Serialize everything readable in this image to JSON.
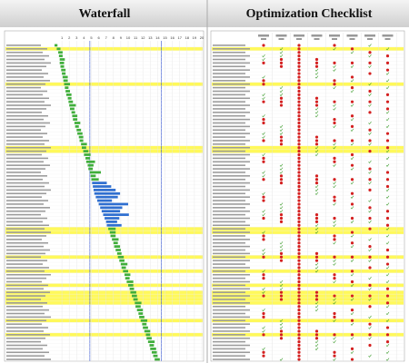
{
  "header": {
    "left": "Waterfall",
    "right": "Optimization Checklist"
  },
  "waterfall": {
    "xlim": [
      0,
      20
    ],
    "xticks": [
      1,
      2,
      3,
      4,
      5,
      6,
      7,
      8,
      9,
      10,
      11,
      12,
      13,
      14,
      15,
      16,
      17,
      18,
      19,
      20
    ],
    "markers": [
      4.8,
      14.5
    ],
    "start": [
      0,
      0.3,
      0.5,
      0.6,
      0.7,
      0.7,
      0.8,
      0.9,
      1,
      1.1,
      1.2,
      1.3,
      1.4,
      1.5,
      1.6,
      1.8,
      1.9,
      2,
      2.1,
      2.3,
      2.4,
      2.5,
      2.7,
      2.8,
      3,
      3.1,
      3.3,
      3.4,
      3.6,
      3.7,
      3.9,
      4,
      4.2,
      4.3,
      4.5,
      4.6,
      4.8,
      4.9,
      5,
      5.1,
      5.2,
      5.3,
      5.4,
      5.6,
      5.8,
      6,
      6.2,
      6.4,
      6.6,
      6.8,
      7,
      7.1,
      7.3,
      7.5,
      7.6,
      7.8,
      8,
      8.1,
      8.3,
      8.5,
      8.6,
      8.8,
      9,
      9.1,
      9.3,
      9.5,
      9.6,
      9.8,
      10,
      10.2,
      10.3,
      10.5,
      10.7,
      10.9,
      11,
      11.2,
      11.4,
      11.5,
      11.7,
      11.9,
      12,
      12.2,
      12.4,
      12.5,
      12.7,
      12.9,
      13,
      13.2,
      13.4,
      13.6
    ],
    "duration": [
      0.4,
      0.5,
      0.6,
      0.5,
      0.7,
      0.6,
      0.5,
      0.6,
      0.5,
      0.7,
      0.6,
      0.8,
      0.5,
      0.6,
      0.7,
      0.5,
      0.6,
      0.9,
      0.6,
      0.5,
      0.7,
      0.6,
      0.8,
      0.5,
      0.6,
      0.7,
      0.6,
      0.5,
      0.8,
      0.6,
      0.7,
      0.9,
      0.6,
      1.2,
      0.8,
      0.6,
      1.5,
      0.7,
      1,
      2,
      2.5,
      3,
      3.5,
      3,
      2,
      4,
      3,
      2.5,
      3.5,
      2,
      1.5,
      2,
      1,
      0.8,
      0.7,
      0.9,
      0.6,
      0.8,
      0.7,
      0.6,
      0.8,
      0.7,
      0.9,
      0.6,
      0.7,
      0.8,
      0.6,
      0.9,
      0.7,
      0.6,
      0.8,
      0.7,
      0.6,
      0.9,
      0.7,
      0.8,
      0.6,
      0.7,
      0.9,
      0.6,
      0.7,
      0.8,
      0.6,
      0.7,
      0.9,
      0.6,
      0.8,
      0.7,
      0.6,
      0.7
    ],
    "bar_color": "#3fae3a",
    "long_color": "#2f6fd0",
    "long_rows": [
      39,
      40,
      41,
      42,
      43,
      44,
      45,
      46,
      47,
      48,
      49,
      50,
      51
    ],
    "highlight_rows": [
      1,
      11,
      29,
      30,
      52,
      53,
      60,
      64,
      68,
      70,
      71,
      72,
      73,
      78,
      82
    ],
    "highlight_color": "#fff95a"
  }
}
